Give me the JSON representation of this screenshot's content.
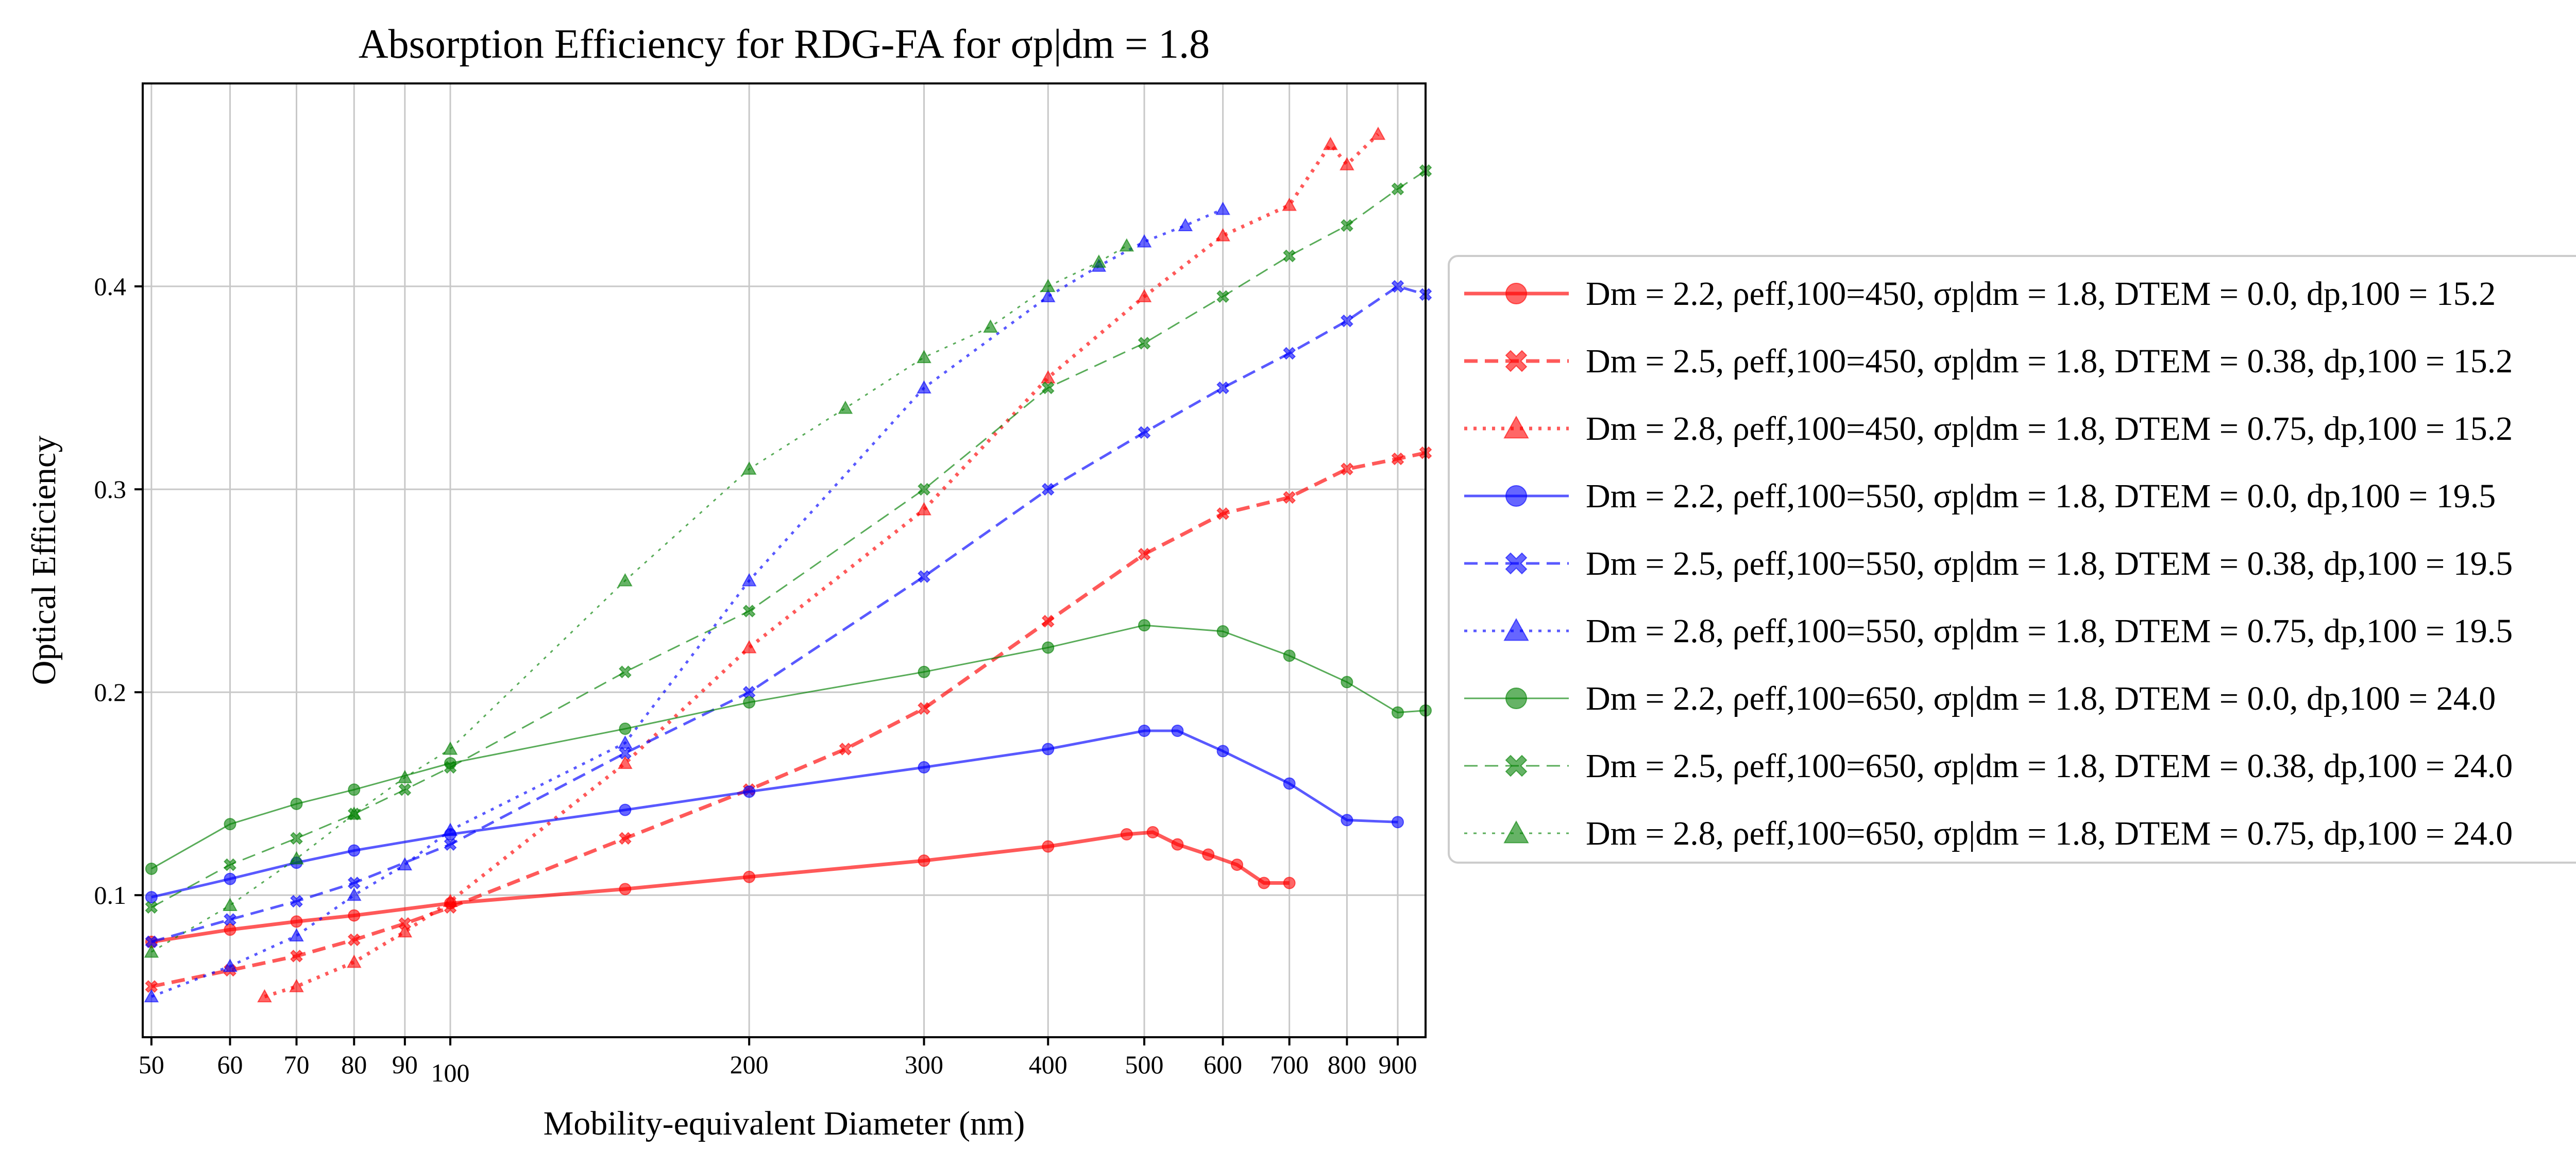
{
  "chart_data": {
    "type": "line",
    "title": "Absorption Efficiency for RDG-FA for σp|dm = 1.8",
    "xlabel": "Mobility-equivalent Diameter (nm)",
    "ylabel": "Optical Efficiency",
    "xscale": "log",
    "xlim": [
      49,
      960
    ],
    "ylim": [
      0.03,
      0.5
    ],
    "grid": true,
    "legend_placement": "outside-right",
    "x_ticks": [
      50,
      60,
      70,
      80,
      90,
      100,
      200,
      300,
      400,
      500,
      600,
      700,
      800,
      900
    ],
    "x_tick_labels": [
      "50",
      "60",
      "70",
      "80",
      "90",
      "100",
      "200",
      "300",
      "400",
      "500",
      "600",
      "700",
      "800",
      "900"
    ],
    "y_ticks": [
      0.1,
      0.2,
      0.3,
      0.4
    ],
    "y_tick_labels": [
      "0.1",
      "0.2",
      "0.3",
      "0.4"
    ],
    "series": [
      {
        "name": "Dm = 2.2, ρeff,100=450, σp|dm = 1.8, DTEM = 0.0, dp,100 = 15.2",
        "color": "#ff0000",
        "marker": "circle",
        "dash": "solid",
        "line_width": "thick",
        "x": [
          50,
          60,
          70,
          80,
          100,
          150,
          200,
          300,
          400,
          480,
          510,
          540,
          580,
          620,
          660,
          700
        ],
        "y": [
          0.077,
          0.083,
          0.087,
          0.09,
          0.096,
          0.103,
          0.109,
          0.117,
          0.124,
          0.13,
          0.131,
          0.125,
          0.12,
          0.115,
          0.106,
          0.106
        ]
      },
      {
        "name": "Dm = 2.5, ρeff,100=450, σp|dm = 1.8, DTEM = 0.38, dp,100 = 15.2",
        "color": "#ff0000",
        "marker": "x",
        "dash": "dashed",
        "line_width": "thick",
        "x": [
          50,
          60,
          70,
          80,
          90,
          100,
          150,
          200,
          250,
          300,
          400,
          500,
          600,
          700,
          800,
          900,
          960
        ],
        "y": [
          0.055,
          0.063,
          0.07,
          0.078,
          0.086,
          0.094,
          0.128,
          0.152,
          0.172,
          0.192,
          0.235,
          0.268,
          0.288,
          0.296,
          0.31,
          0.315,
          0.318
        ]
      },
      {
        "name": "Dm = 2.8, ρeff,100=450, σp|dm = 1.8, DTEM = 0.75, dp,100 = 15.2",
        "color": "#ff0000",
        "marker": "triangle",
        "dash": "dotted",
        "line_width": "thick",
        "x": [
          65,
          70,
          80,
          90,
          100,
          150,
          200,
          300,
          400,
          500,
          600,
          700,
          770,
          800,
          860
        ],
        "y": [
          0.05,
          0.055,
          0.067,
          0.082,
          0.097,
          0.165,
          0.222,
          0.29,
          0.355,
          0.395,
          0.425,
          0.44,
          0.47,
          0.46,
          0.475
        ]
      },
      {
        "name": "Dm = 2.2, ρeff,100=550, σp|dm = 1.8, DTEM = 0.0, dp,100 = 19.5",
        "color": "#0000ff",
        "marker": "circle",
        "dash": "solid",
        "line_width": "normal",
        "x": [
          50,
          60,
          70,
          80,
          100,
          150,
          200,
          300,
          400,
          500,
          540,
          600,
          700,
          800,
          900
        ],
        "y": [
          0.099,
          0.108,
          0.116,
          0.122,
          0.13,
          0.142,
          0.151,
          0.163,
          0.172,
          0.181,
          0.181,
          0.171,
          0.155,
          0.137,
          0.136
        ]
      },
      {
        "name": "Dm = 2.5, ρeff,100=550, σp|dm = 1.8, DTEM = 0.38, dp,100 = 19.5",
        "color": "#0000ff",
        "marker": "x",
        "dash": "dashed",
        "line_width": "normal",
        "x": [
          50,
          60,
          70,
          80,
          100,
          150,
          200,
          300,
          400,
          500,
          600,
          700,
          800,
          900,
          960
        ],
        "y": [
          0.077,
          0.088,
          0.097,
          0.106,
          0.125,
          0.17,
          0.2,
          0.257,
          0.3,
          0.328,
          0.35,
          0.367,
          0.383,
          0.4,
          0.396
        ]
      },
      {
        "name": "Dm = 2.8, ρeff,100=550, σp|dm = 1.8, DTEM = 0.75, dp,100 = 19.5",
        "color": "#0000ff",
        "marker": "triangle",
        "dash": "dotted",
        "line_width": "normal",
        "x": [
          50,
          60,
          70,
          80,
          90,
          100,
          150,
          200,
          300,
          400,
          450,
          500,
          550,
          600
        ],
        "y": [
          0.05,
          0.065,
          0.08,
          0.1,
          0.115,
          0.132,
          0.175,
          0.255,
          0.35,
          0.395,
          0.41,
          0.422,
          0.43,
          0.438
        ]
      },
      {
        "name": "Dm = 2.2, ρeff,100=650, σp|dm = 1.8, DTEM = 0.0, dp,100 = 24.0",
        "color": "#008000",
        "marker": "circle",
        "dash": "solid",
        "line_width": "thin",
        "x": [
          50,
          60,
          70,
          80,
          100,
          150,
          200,
          300,
          400,
          500,
          600,
          700,
          800,
          900,
          960
        ],
        "y": [
          0.113,
          0.135,
          0.145,
          0.152,
          0.165,
          0.182,
          0.195,
          0.21,
          0.222,
          0.233,
          0.23,
          0.218,
          0.205,
          0.19,
          0.191
        ]
      },
      {
        "name": "Dm = 2.5, ρeff,100=650, σp|dm = 1.8, DTEM = 0.38, dp,100 = 24.0",
        "color": "#008000",
        "marker": "x",
        "dash": "dashed",
        "line_width": "thin",
        "x": [
          50,
          60,
          70,
          80,
          90,
          100,
          150,
          200,
          300,
          400,
          500,
          600,
          700,
          800,
          900,
          960
        ],
        "y": [
          0.094,
          0.115,
          0.128,
          0.14,
          0.152,
          0.163,
          0.21,
          0.24,
          0.3,
          0.35,
          0.372,
          0.395,
          0.415,
          0.43,
          0.448,
          0.457
        ]
      },
      {
        "name": "Dm = 2.8, ρeff,100=650, σp|dm = 1.8, DTEM = 0.75, dp,100 = 24.0",
        "color": "#008000",
        "marker": "triangle",
        "dash": "dotted",
        "line_width": "thin",
        "x": [
          50,
          60,
          70,
          80,
          90,
          100,
          150,
          200,
          250,
          300,
          350,
          400,
          450,
          480
        ],
        "y": [
          0.072,
          0.095,
          0.118,
          0.14,
          0.158,
          0.172,
          0.255,
          0.31,
          0.34,
          0.365,
          0.38,
          0.4,
          0.412,
          0.42
        ]
      }
    ]
  }
}
